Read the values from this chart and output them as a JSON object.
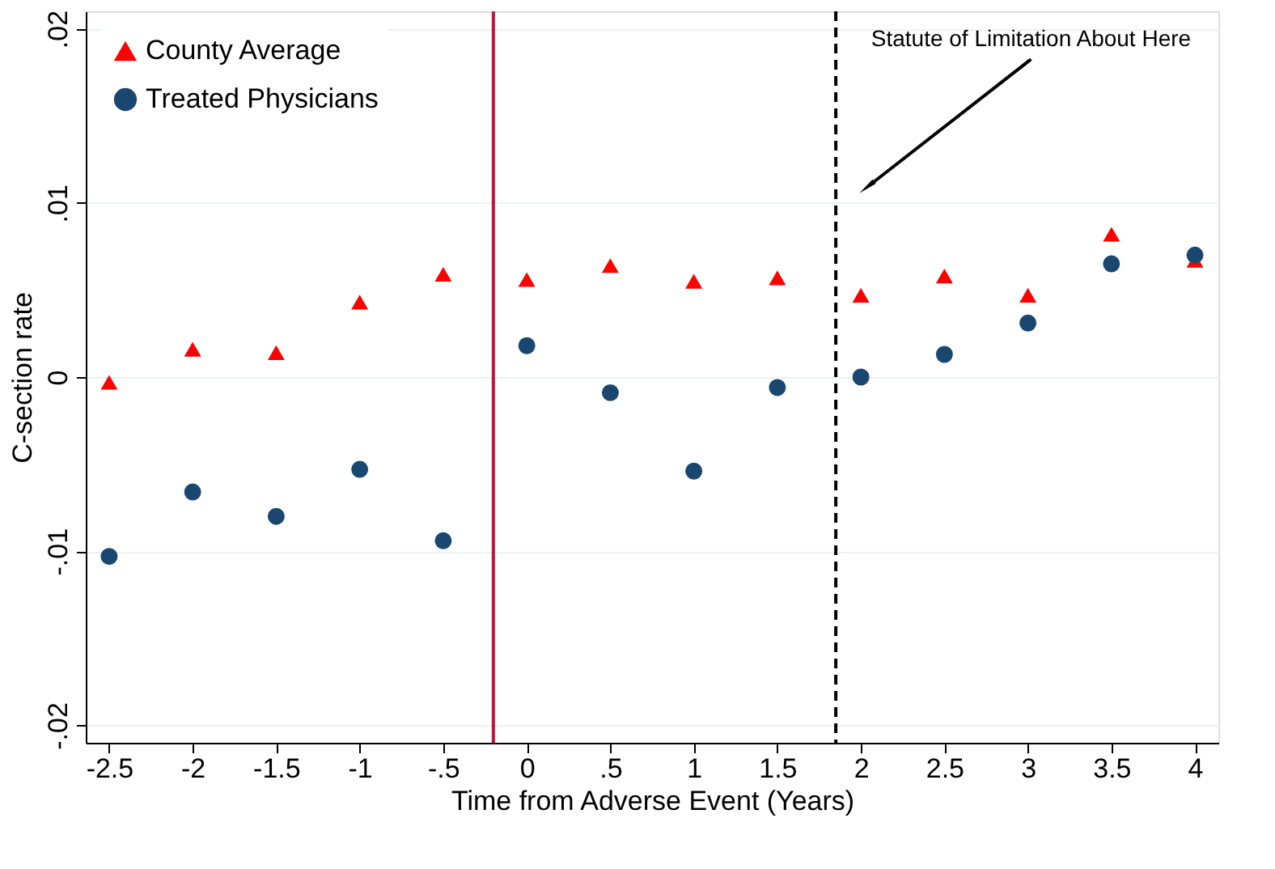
{
  "chart_data": {
    "type": "scatter",
    "xlabel": "Time from  Adverse Event (Years)",
    "ylabel": "C-section rate",
    "x": [
      -2.5,
      -2,
      -1.5,
      -1,
      -0.5,
      0,
      0.5,
      1,
      1.5,
      2,
      2.5,
      3,
      3.5,
      4
    ],
    "series": [
      {
        "name": "County Average",
        "color": "#ff0000",
        "marker": "triangle",
        "values": [
          -0.0003,
          0.0016,
          0.0014,
          0.0043,
          0.0059,
          0.0056,
          0.0064,
          0.0055,
          0.0057,
          0.0047,
          0.0058,
          0.0047,
          0.0082,
          0.0067
        ]
      },
      {
        "name": "Treated Physicians",
        "color": "#1a476f",
        "marker": "circle",
        "values": [
          -0.0103,
          -0.0066,
          -0.008,
          -0.0053,
          -0.0094,
          0.0018,
          -0.0009,
          -0.0054,
          -0.0006,
          0.0,
          0.0013,
          0.0031,
          0.0065,
          0.007
        ]
      }
    ],
    "xlim": [
      -2.64,
      4.14
    ],
    "ylim": [
      -0.021,
      0.021
    ],
    "xticks": [
      {
        "value": -2.5,
        "label": "-2.5"
      },
      {
        "value": -2,
        "label": "-2"
      },
      {
        "value": -1.5,
        "label": "-1.5"
      },
      {
        "value": -1,
        "label": "-1"
      },
      {
        "value": -0.5,
        "label": "-.5"
      },
      {
        "value": 0,
        "label": "0"
      },
      {
        "value": 0.5,
        "label": ".5"
      },
      {
        "value": 1,
        "label": "1"
      },
      {
        "value": 1.5,
        "label": "1.5"
      },
      {
        "value": 2,
        "label": "2"
      },
      {
        "value": 2.5,
        "label": "2.5"
      },
      {
        "value": 3,
        "label": "3"
      },
      {
        "value": 3.5,
        "label": "3.5"
      },
      {
        "value": 4,
        "label": "4"
      }
    ],
    "yticks": [
      {
        "value": -0.02,
        "label": "-.02"
      },
      {
        "value": -0.01,
        "label": "-.01"
      },
      {
        "value": 0,
        "label": "0"
      },
      {
        "value": 0.01,
        "label": ".01"
      },
      {
        "value": 0.02,
        "label": ".02"
      }
    ],
    "ref_lines": [
      {
        "axis": "x",
        "value": -0.2,
        "color": "#c0143c",
        "line_style": "solid"
      },
      {
        "axis": "x",
        "value": 1.85,
        "color": "#000000",
        "line_style": "dashed"
      }
    ],
    "annotations": [
      {
        "text": "Statute of Limitation About Here",
        "x": 2.05,
        "y": 0.011
      }
    ],
    "grid": "y",
    "legend": "top left"
  }
}
